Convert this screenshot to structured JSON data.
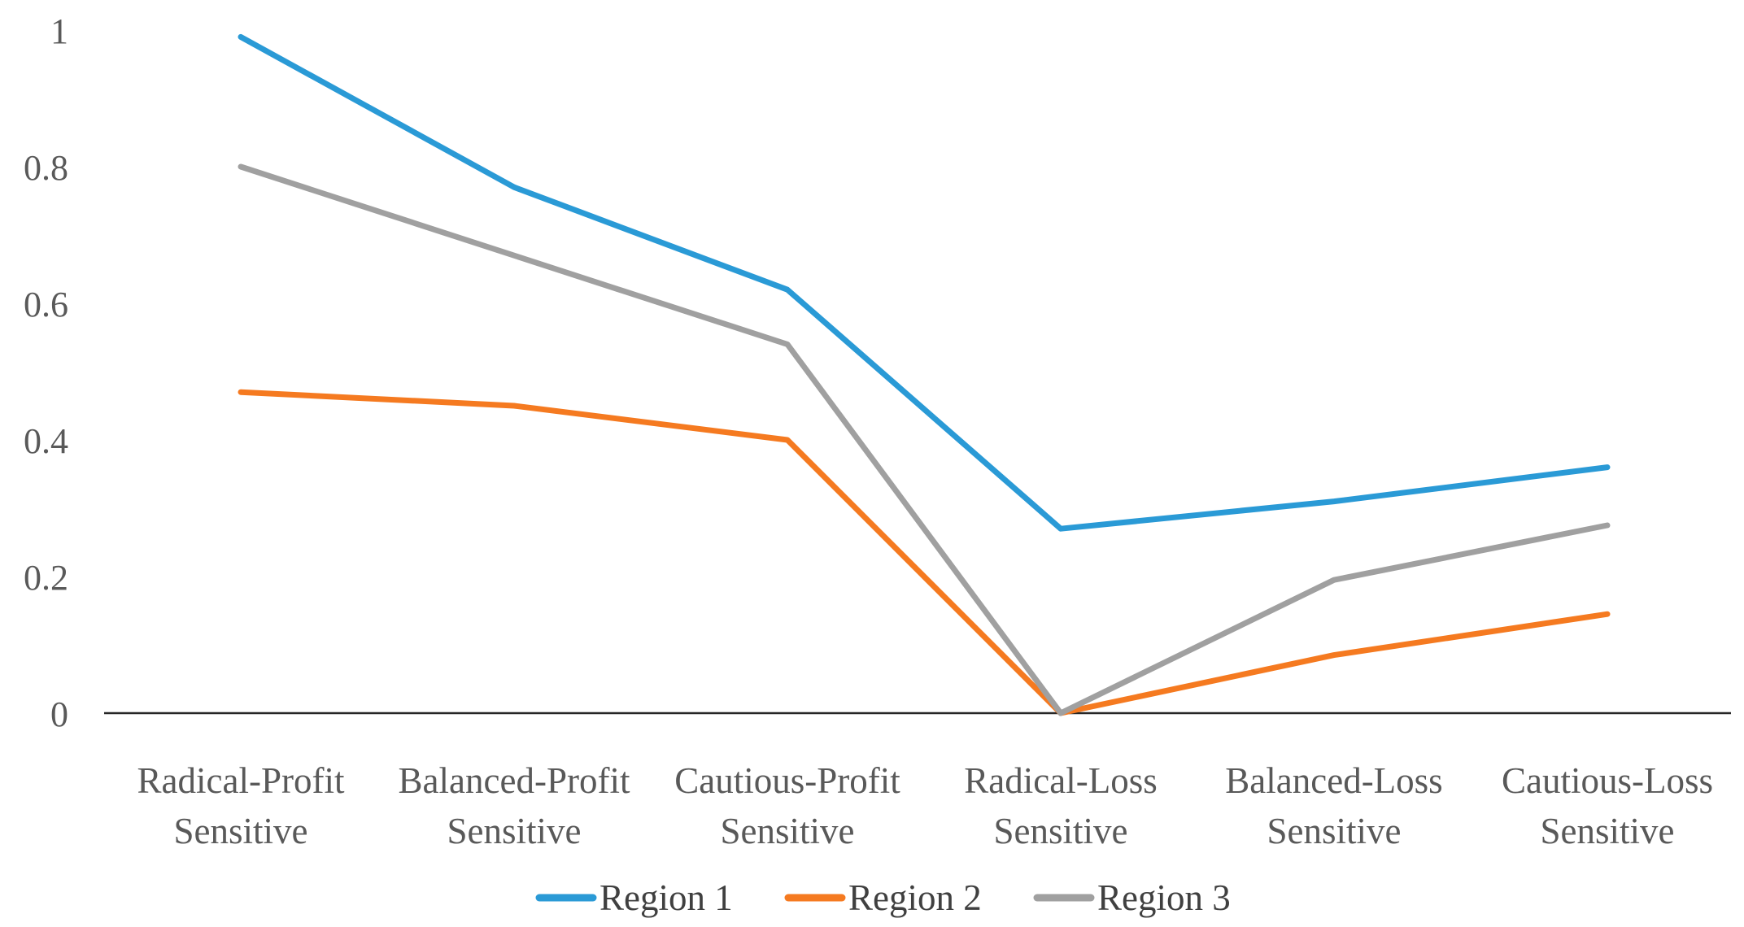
{
  "chart_data": {
    "type": "line",
    "title": "",
    "xlabel": "",
    "ylabel": "",
    "ylim": [
      0,
      1
    ],
    "grid": false,
    "legend_position": "bottom",
    "background_color": "#FFFFFF",
    "axis_line_color": "#262626",
    "tick_text_color": "#595959",
    "legend_text_color": "#404040",
    "categories": [
      "Radical-Profit Sensitive",
      "Balanced-Profit Sensitive",
      "Cautious-Profit Sensitive",
      "Radical-Loss Sensitive",
      "Balanced-Loss Sensitive",
      "Cautious-Loss Sensitive"
    ],
    "category_lines": [
      [
        "Radical-Profit",
        "Sensitive"
      ],
      [
        "Balanced-Profit",
        "Sensitive"
      ],
      [
        "Cautious-Profit",
        "Sensitive"
      ],
      [
        "Radical-Loss",
        "Sensitive"
      ],
      [
        "Balanced-Loss",
        "Sensitive"
      ],
      [
        "Cautious-Loss",
        "Sensitive"
      ]
    ],
    "yticks": {
      "values": [
        1,
        0.8,
        0.6,
        0.4,
        0.2,
        0
      ],
      "labels": [
        "1",
        "0.8",
        "0.6",
        "0.4",
        "0.2",
        "0"
      ]
    },
    "series": [
      {
        "name": "Region 1",
        "color": "#2A9AD6",
        "values": [
          0.99,
          0.77,
          0.62,
          0.27,
          0.31,
          0.36
        ]
      },
      {
        "name": "Region 2",
        "color": "#F57A20",
        "values": [
          0.47,
          0.45,
          0.4,
          0.0,
          0.085,
          0.145
        ]
      },
      {
        "name": "Region 3",
        "color": "#A0A0A0",
        "values": [
          0.8,
          0.67,
          0.54,
          0.0,
          0.195,
          0.275
        ]
      }
    ]
  }
}
